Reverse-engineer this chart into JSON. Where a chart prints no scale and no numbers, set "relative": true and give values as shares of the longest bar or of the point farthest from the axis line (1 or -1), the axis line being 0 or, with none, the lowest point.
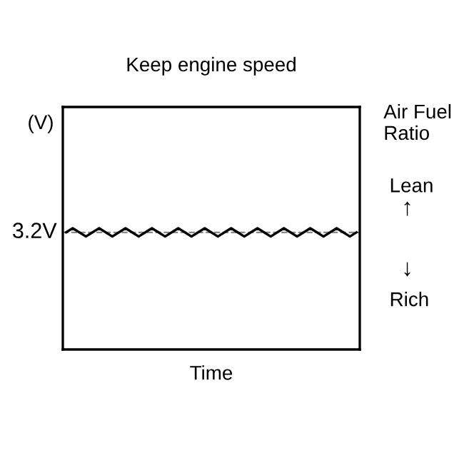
{
  "chart_data": {
    "type": "line",
    "relative": true,
    "title": "Keep engine speed",
    "ylabel": "(V)",
    "xlabel": "Time",
    "categories": [
      null,
      null,
      null,
      null,
      null,
      null,
      null,
      null,
      null,
      null,
      null,
      null,
      null,
      null,
      null,
      null,
      null,
      null,
      null,
      null,
      null,
      null,
      null,
      null,
      null,
      null,
      null,
      null,
      null,
      null,
      null,
      null,
      null,
      null,
      null,
      null,
      null,
      null,
      null,
      null,
      null,
      null,
      null,
      null,
      null
    ],
    "series": [
      {
        "color": "#000000",
        "values": [
          0.966,
          1,
          0.966,
          0.932,
          0.966,
          1,
          0.966,
          0.932,
          0.966,
          1,
          0.966,
          0.932,
          0.966,
          1,
          0.966,
          0.932,
          0.966,
          1,
          0.966,
          0.932,
          0.966,
          1,
          0.966,
          0.932,
          0.966,
          1,
          0.966,
          0.932,
          0.966,
          1,
          0.966,
          0.932,
          0.966,
          1,
          0.966,
          0.932,
          0.966,
          1,
          0.966,
          0.932,
          0.966,
          1,
          0.966,
          0.932,
          0.966
        ]
      }
    ],
    "ref_lines": [
      {
        "axis": "y",
        "value": 0.966,
        "label": "3.2V",
        "color": "#888888",
        "line_style": "dashed"
      }
    ],
    "annotations": [
      "Air Fuel\nRatio",
      "Lean",
      "↑",
      "↓",
      "Rich"
    ],
    "line_style": "solid"
  }
}
